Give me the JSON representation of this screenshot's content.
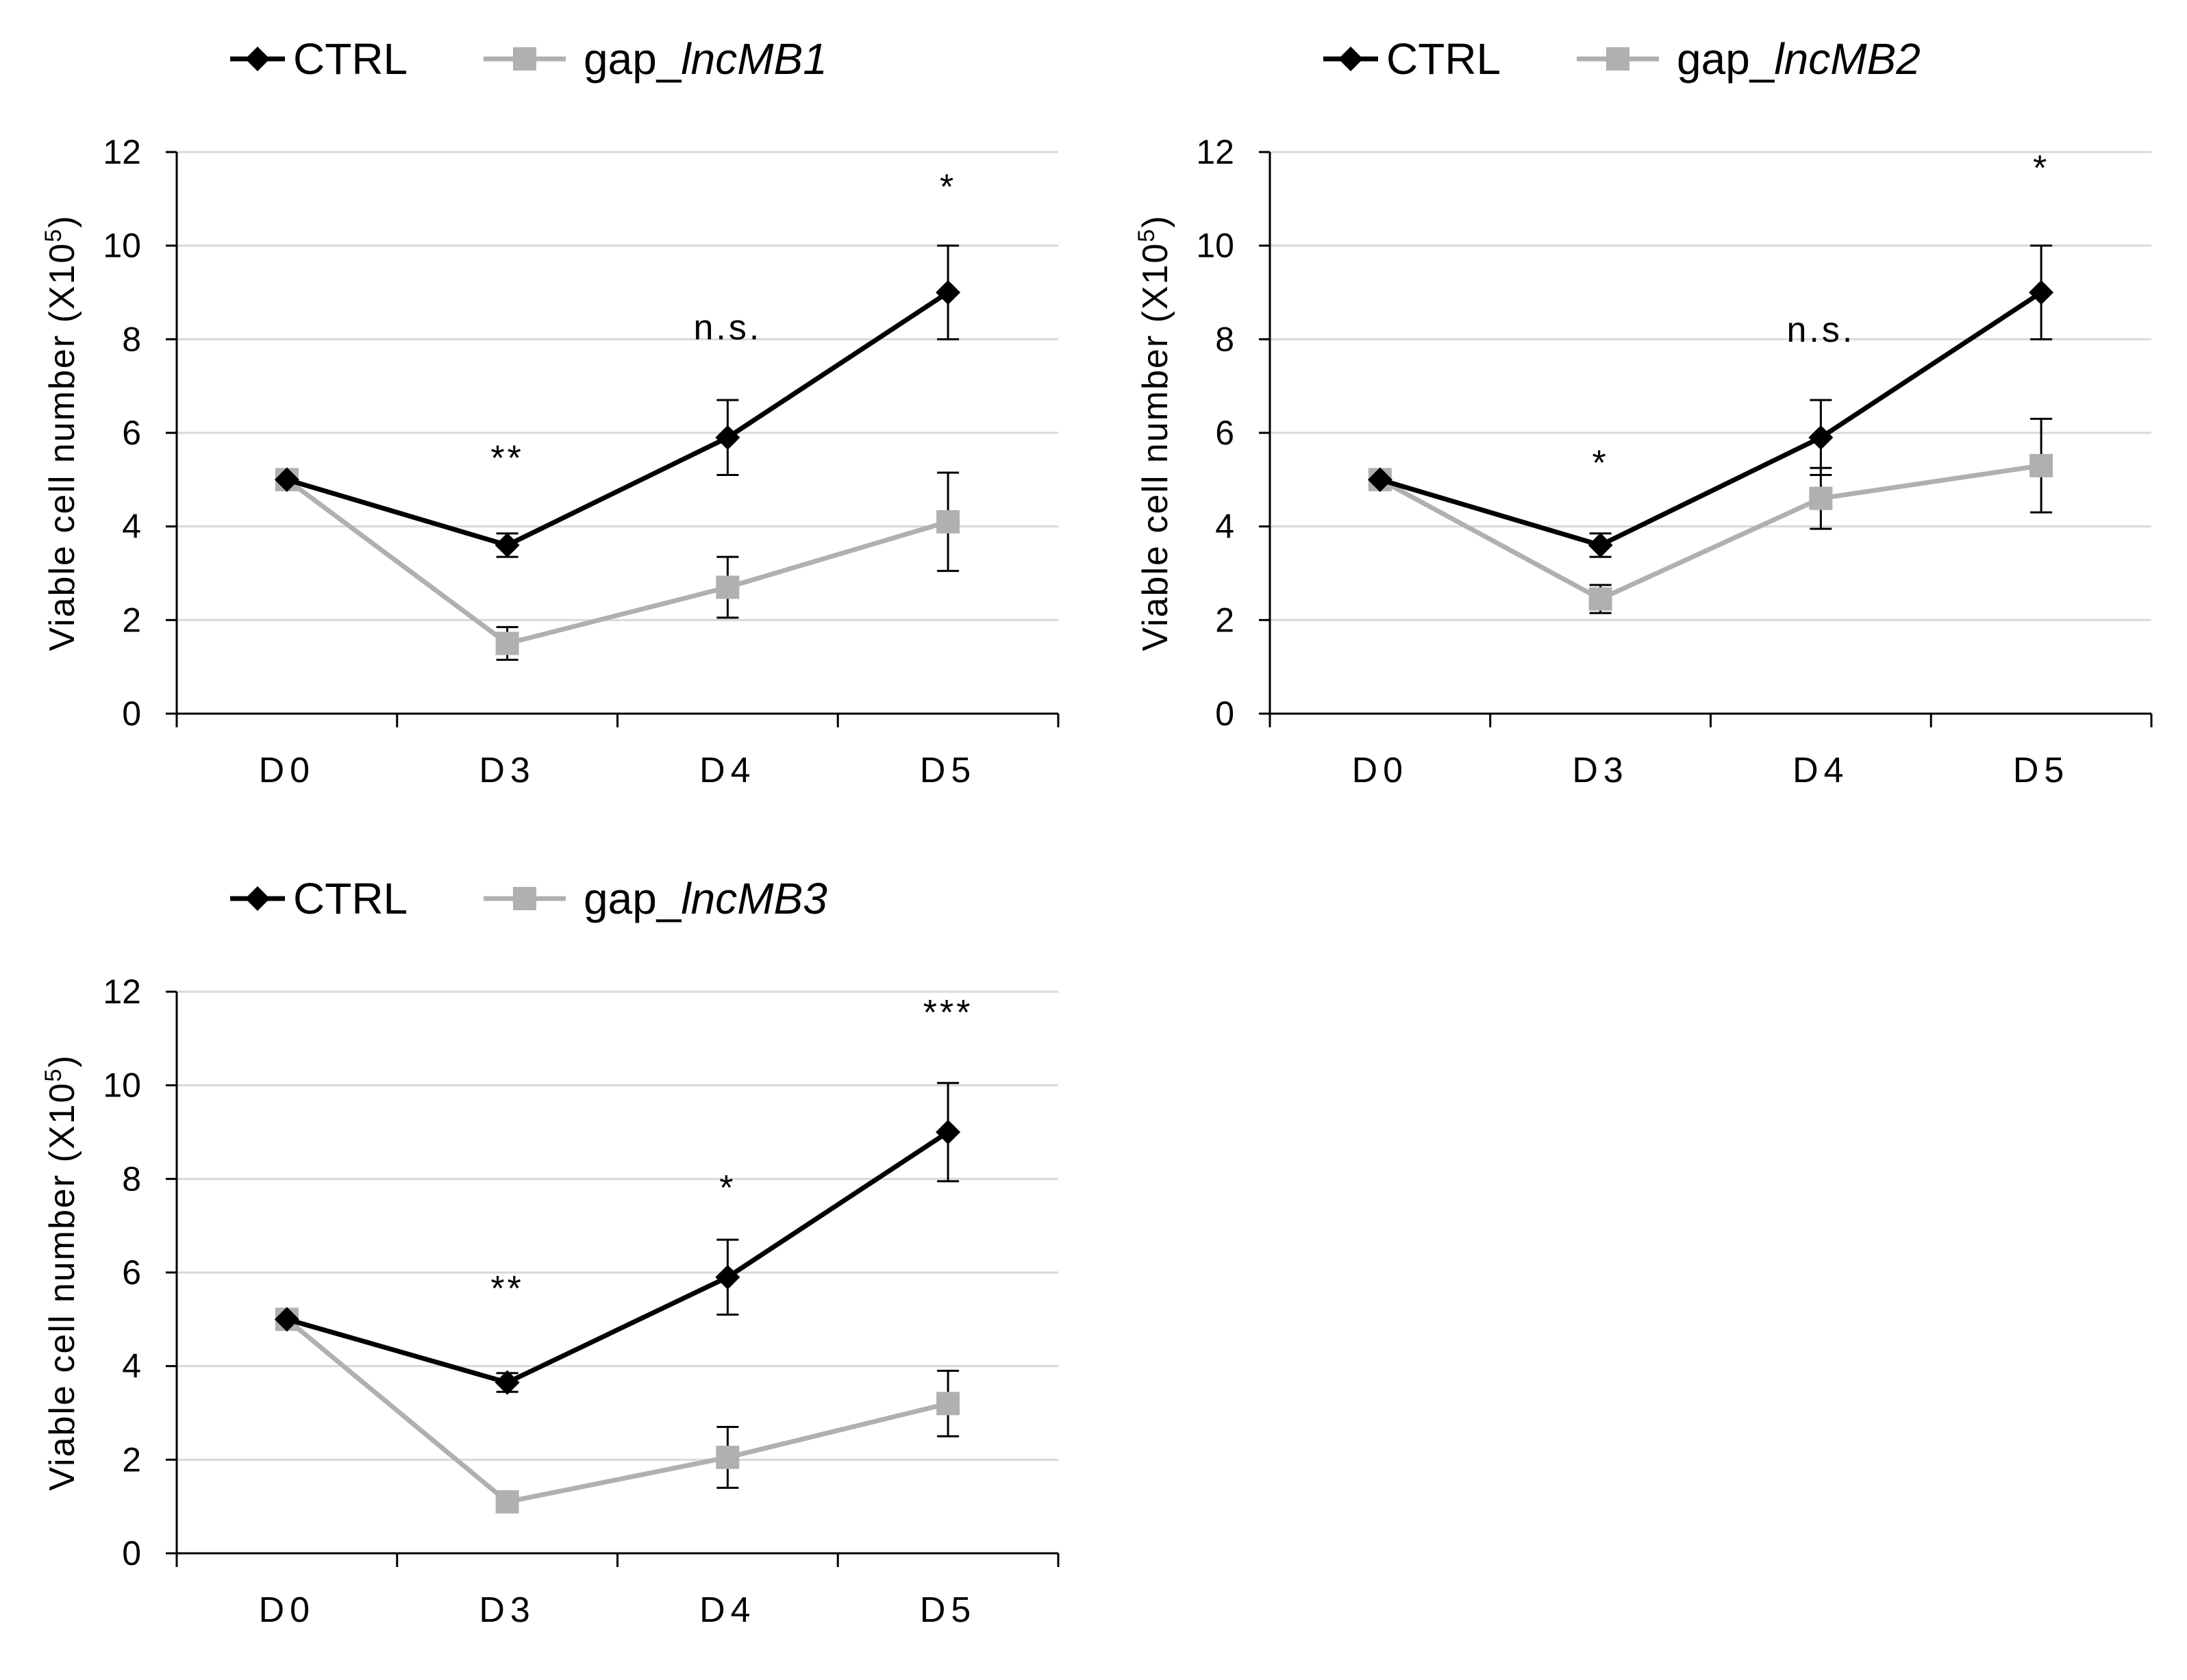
{
  "colors": {
    "ctrl": "#000000",
    "gap": "#b0b0b0",
    "grid": "#d9d9d9",
    "axis": "#000000",
    "text": "#000000"
  },
  "chart_data": [
    {
      "type": "line",
      "categories": [
        "D0",
        "D3",
        "D4",
        "D5"
      ],
      "ylabel_prefix": "Viable cell number  (X10",
      "ylabel_sup": "5",
      "ylabel_suffix": ")",
      "ylim": [
        0,
        12
      ],
      "yticks": [
        0,
        2,
        4,
        6,
        8,
        10,
        12
      ],
      "grid": true,
      "legend_position": "top-left",
      "series": [
        {
          "name": "CTRL",
          "values": [
            5.0,
            3.6,
            5.9,
            9.0
          ],
          "errors": [
            0.0,
            0.25,
            0.8,
            1.0
          ],
          "marker": "diamond",
          "color": "#000000",
          "italic_part": ""
        },
        {
          "name": "gap_",
          "name_italic": "lncMB1",
          "values": [
            5.0,
            1.5,
            2.7,
            4.1
          ],
          "errors": [
            0.0,
            0.35,
            0.65,
            1.05
          ],
          "marker": "square",
          "color": "#b0b0b0"
        }
      ],
      "annotations": [
        {
          "category": "D3",
          "text": "**",
          "y": 5.2
        },
        {
          "category": "D4",
          "text": "n.s.",
          "y": 8.0
        },
        {
          "category": "D5",
          "text": "*",
          "y": 11.0
        }
      ]
    },
    {
      "type": "line",
      "categories": [
        "D0",
        "D3",
        "D4",
        "D5"
      ],
      "ylabel_prefix": "Viable cell number  (X10",
      "ylabel_sup": "5",
      "ylabel_suffix": ")",
      "ylim": [
        0,
        12
      ],
      "yticks": [
        0,
        2,
        4,
        6,
        8,
        10,
        12
      ],
      "grid": true,
      "legend_position": "top-left",
      "series": [
        {
          "name": "CTRL",
          "values": [
            5.0,
            3.6,
            5.9,
            9.0
          ],
          "errors": [
            0.0,
            0.25,
            0.8,
            1.0
          ],
          "marker": "diamond",
          "color": "#000000",
          "italic_part": ""
        },
        {
          "name": "gap_",
          "name_italic": "lncMB2",
          "values": [
            5.0,
            2.45,
            4.6,
            5.3
          ],
          "errors": [
            0.0,
            0.3,
            0.65,
            1.0
          ],
          "marker": "square",
          "color": "#b0b0b0"
        }
      ],
      "annotations": [
        {
          "category": "D3",
          "text": "*",
          "y": 5.1
        },
        {
          "category": "D4",
          "text": "n.s.",
          "y": 7.95
        },
        {
          "category": "D5",
          "text": "*",
          "y": 11.4
        }
      ]
    },
    {
      "type": "line",
      "categories": [
        "D0",
        "D3",
        "D4",
        "D5"
      ],
      "ylabel_prefix": "Viable cell number  (X10",
      "ylabel_sup": "5",
      "ylabel_suffix": ")",
      "ylim": [
        0,
        12
      ],
      "yticks": [
        0,
        2,
        4,
        6,
        8,
        10,
        12
      ],
      "grid": true,
      "legend_position": "top-left",
      "series": [
        {
          "name": "CTRL",
          "values": [
            5.0,
            3.65,
            5.9,
            9.0
          ],
          "errors": [
            0.0,
            0.2,
            0.8,
            1.05
          ],
          "marker": "diamond",
          "color": "#000000",
          "italic_part": ""
        },
        {
          "name": "gap_",
          "name_italic": "lncMB3",
          "values": [
            5.0,
            1.1,
            2.05,
            3.2
          ],
          "errors": [
            0.0,
            0.2,
            0.65,
            0.7
          ],
          "marker": "square",
          "color": "#b0b0b0"
        }
      ],
      "annotations": [
        {
          "category": "D3",
          "text": "**",
          "y": 5.4
        },
        {
          "category": "D4",
          "text": "*",
          "y": 7.55
        },
        {
          "category": "D5",
          "text": "***",
          "y": 11.3
        }
      ]
    }
  ]
}
